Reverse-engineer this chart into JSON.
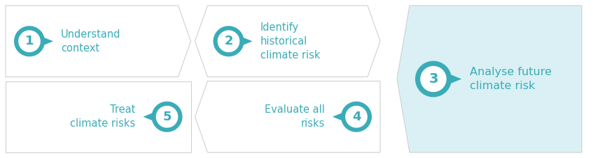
{
  "bg_color": "#ffffff",
  "teal": "#3aacb8",
  "light_teal_bg": "#daf0f4",
  "box_bg": "#ffffff",
  "box_border": "#d0d0d0",
  "steps": [
    {
      "num": "1",
      "label": "Understand\ncontext",
      "row": 0,
      "col": 0,
      "badge_side": "left"
    },
    {
      "num": "2",
      "label": "Identify\nhistorical\nclimate risk",
      "row": 0,
      "col": 1,
      "badge_side": "left"
    },
    {
      "num": "3",
      "label": "Analyse future\nclimate risk",
      "row": -1,
      "col": 2,
      "badge_side": "left"
    },
    {
      "num": "4",
      "label": "Evaluate all\nrisks",
      "row": 1,
      "col": 1,
      "badge_side": "right"
    },
    {
      "num": "5",
      "label": "Treat\nclimate risks",
      "row": 1,
      "col": 0,
      "badge_side": "right"
    }
  ],
  "font_size_label": 10.5,
  "font_size_num": 13,
  "fig_width": 8.47,
  "fig_height": 2.27,
  "dpi": 100
}
